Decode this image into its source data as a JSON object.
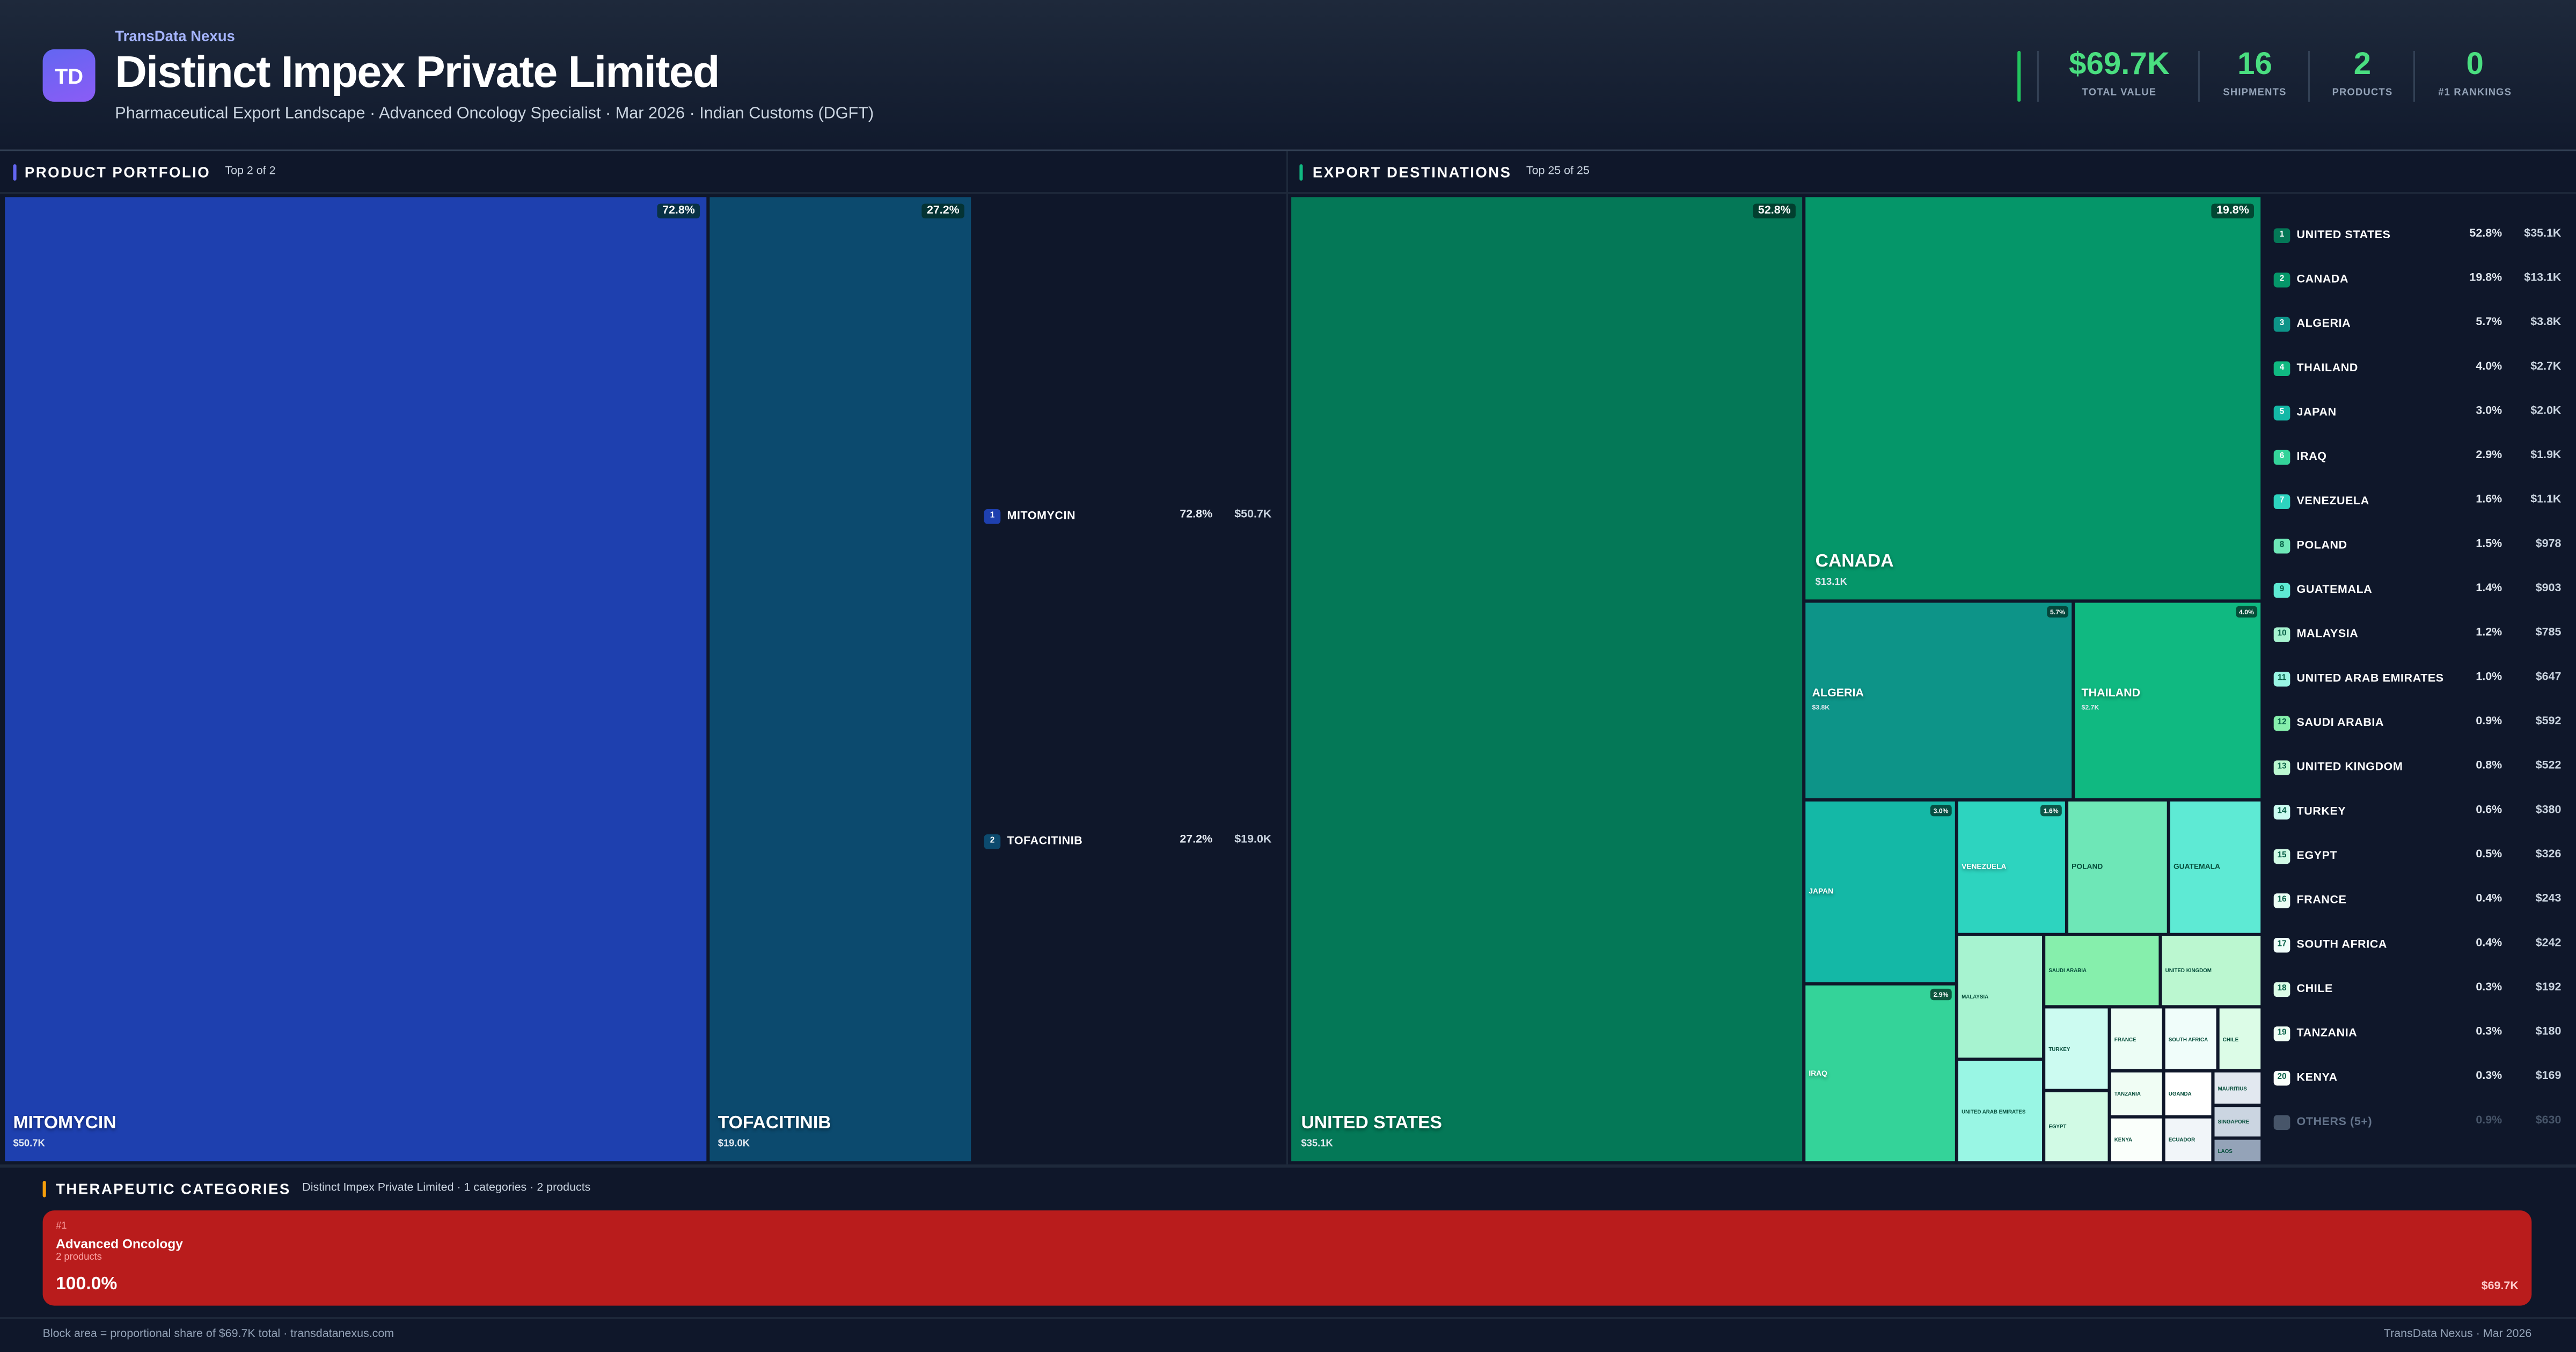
{
  "header": {
    "brand": "TransData Nexus",
    "logo_text": "TD",
    "title": "Distinct Impex Private Limited",
    "subtitle": "Pharmaceutical Export Landscape · Advanced Oncology Specialist · Mar 2026 · Indian Customs (DGFT)",
    "stats": [
      {
        "value": "$69.7K",
        "label": "TOTAL VALUE"
      },
      {
        "value": "16",
        "label": "SHIPMENTS"
      },
      {
        "value": "2",
        "label": "PRODUCTS"
      },
      {
        "value": "0",
        "label": "#1 RANKINGS"
      }
    ]
  },
  "products": {
    "title": "PRODUCT PORTFOLIO",
    "subtitle": "Top 2 of 2",
    "accent": "#6366f1",
    "items": [
      {
        "rank": "1",
        "name": "MITOMYCIN",
        "pct": "72.8%",
        "value": "$50.7K",
        "color": "#1e40af"
      },
      {
        "rank": "2",
        "name": "TOFACITINIB",
        "pct": "27.2%",
        "value": "$19.0K",
        "color": "#0c4a6e"
      }
    ]
  },
  "destinations": {
    "title": "EXPORT DESTINATIONS",
    "subtitle": "Top 25 of 25",
    "accent": "#10b981",
    "items": [
      {
        "rank": "1",
        "name": "UNITED STATES",
        "pct": "52.8%",
        "value": "$35.1K",
        "color": "#047857"
      },
      {
        "rank": "2",
        "name": "CANADA",
        "pct": "19.8%",
        "value": "$13.1K",
        "color": "#059669"
      },
      {
        "rank": "3",
        "name": "ALGERIA",
        "pct": "5.7%",
        "value": "$3.8K",
        "color": "#0d9488"
      },
      {
        "rank": "4",
        "name": "THAILAND",
        "pct": "4.0%",
        "value": "$2.7K",
        "color": "#10b981"
      },
      {
        "rank": "5",
        "name": "JAPAN",
        "pct": "3.0%",
        "value": "$2.0K",
        "color": "#14b8a6"
      },
      {
        "rank": "6",
        "name": "IRAQ",
        "pct": "2.9%",
        "value": "$1.9K",
        "color": "#34d399"
      },
      {
        "rank": "7",
        "name": "VENEZUELA",
        "pct": "1.6%",
        "value": "$1.1K",
        "color": "#2dd4bf"
      },
      {
        "rank": "8",
        "name": "POLAND",
        "pct": "1.5%",
        "value": "$978",
        "color": "#6ee7b7"
      },
      {
        "rank": "9",
        "name": "GUATEMALA",
        "pct": "1.4%",
        "value": "$903",
        "color": "#5eead4"
      },
      {
        "rank": "10",
        "name": "MALAYSIA",
        "pct": "1.2%",
        "value": "$785",
        "color": "#a7f3d0"
      },
      {
        "rank": "11",
        "name": "UNITED ARAB EMIRATES",
        "pct": "1.0%",
        "value": "$647",
        "color": "#99f6e4"
      },
      {
        "rank": "12",
        "name": "SAUDI ARABIA",
        "pct": "0.9%",
        "value": "$592",
        "color": "#86efac"
      },
      {
        "rank": "13",
        "name": "UNITED KINGDOM",
        "pct": "0.8%",
        "value": "$522",
        "color": "#bbf7d0"
      },
      {
        "rank": "14",
        "name": "TURKEY",
        "pct": "0.6%",
        "value": "$380",
        "color": "#ccfbf1"
      },
      {
        "rank": "15",
        "name": "EGYPT",
        "pct": "0.5%",
        "value": "$326",
        "color": "#d1fae5"
      },
      {
        "rank": "16",
        "name": "FRANCE",
        "pct": "0.4%",
        "value": "$243",
        "color": "#ecfdf5"
      },
      {
        "rank": "17",
        "name": "SOUTH AFRICA",
        "pct": "0.4%",
        "value": "$242",
        "color": "#f0fdfa"
      },
      {
        "rank": "18",
        "name": "CHILE",
        "pct": "0.3%",
        "value": "$192",
        "color": "#dcfce7"
      },
      {
        "rank": "19",
        "name": "TANZANIA",
        "pct": "0.3%",
        "value": "$180",
        "color": "#f0fdf4"
      },
      {
        "rank": "20",
        "name": "KENYA",
        "pct": "0.3%",
        "value": "$169",
        "color": "#fafffb"
      }
    ],
    "extra_blocks": [
      {
        "name": "UGANDA",
        "color": "#ffffff"
      },
      {
        "name": "ECUADOR",
        "color": "#f1f5f9"
      },
      {
        "name": "MAURITIUS",
        "color": "#e2e8f0"
      },
      {
        "name": "SINGAPORE",
        "color": "#cbd5e1"
      },
      {
        "name": "LAOS",
        "color": "#94a3b8"
      }
    ],
    "others": {
      "name": "OTHERS (5+)",
      "pct": "0.9%",
      "value": "$630",
      "color": "#475569"
    }
  },
  "categories": {
    "title": "THERAPEUTIC CATEGORIES",
    "subtitle": "Distinct Impex Private Limited · 1 categories · 2 products",
    "accent": "#f59e0b",
    "items": [
      {
        "rank": "#1",
        "name": "Advanced Oncology",
        "count": "2 products",
        "pct": "100.0%",
        "value": "$69.7K",
        "color": "#b91c1c"
      }
    ]
  },
  "footer": {
    "left": "Block area = proportional share of $69.7K total · transdatanexus.com",
    "right": "TransData Nexus · Mar 2026"
  }
}
